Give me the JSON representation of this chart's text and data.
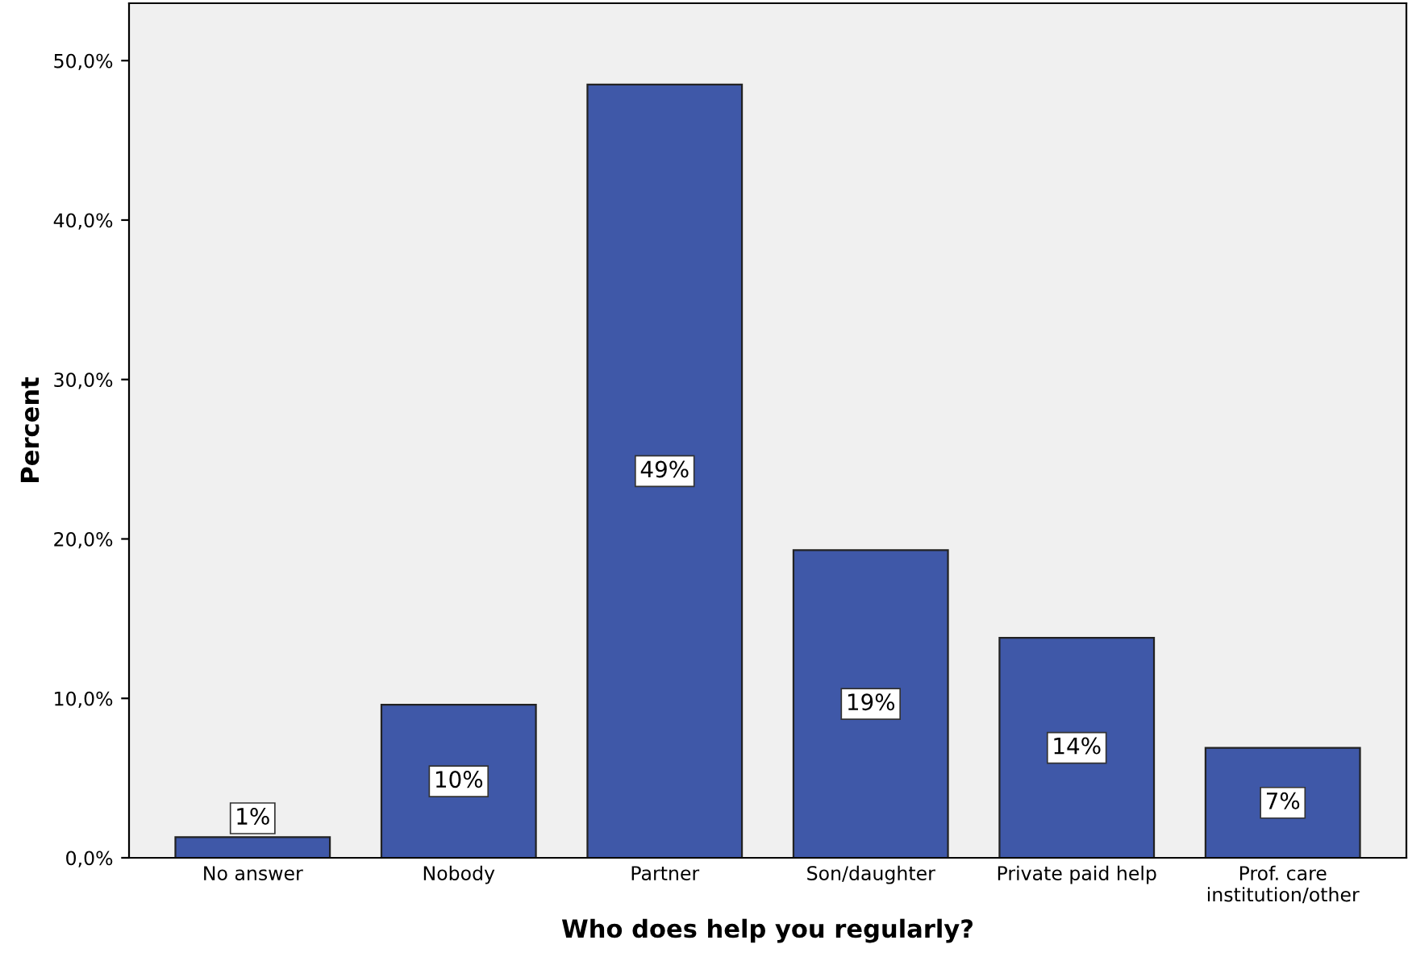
{
  "chart_data": {
    "type": "bar",
    "xlabel": "Who does help you regularly?",
    "ylabel": "Percent",
    "categories": [
      "No answer",
      "Nobody",
      "Partner",
      "Son/daughter",
      "Private paid help",
      "Prof. care\ninstitution/other"
    ],
    "values": [
      1.3,
      9.6,
      48.5,
      19.3,
      13.8,
      6.9
    ],
    "value_labels": [
      "1%",
      "10%",
      "49%",
      "19%",
      "14%",
      "7%"
    ],
    "color": "#3f58a8",
    "ylim": [
      0,
      53.6
    ],
    "yticks": [
      {
        "value": 0,
        "label": "0,0%"
      },
      {
        "value": 10,
        "label": "10,0%"
      },
      {
        "value": 20,
        "label": "20,0%"
      },
      {
        "value": 30,
        "label": "30,0%"
      },
      {
        "value": 40,
        "label": "40,0%"
      },
      {
        "value": 50,
        "label": "50,0%"
      }
    ],
    "grid": false
  }
}
